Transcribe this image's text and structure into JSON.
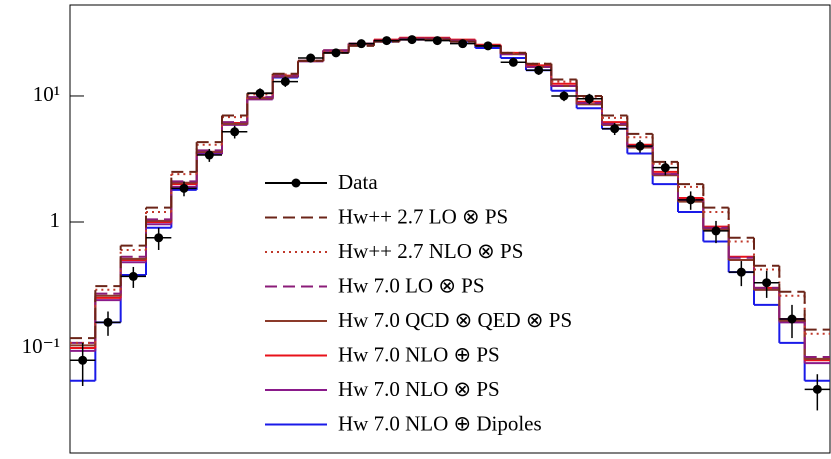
{
  "chart_data": {
    "type": "step",
    "categories": [
      null,
      null,
      null,
      null,
      null,
      null,
      null,
      null,
      null,
      null,
      null,
      null,
      null,
      null,
      null,
      null,
      null,
      null,
      null,
      null,
      null,
      null,
      null,
      null,
      null,
      null,
      null,
      null,
      null,
      null
    ],
    "log_y": true,
    "ylim": [
      0.0147,
      52.7
    ],
    "yticks": [
      {
        "value": 0.1,
        "label": "10⁻¹"
      },
      1,
      {
        "value": 10,
        "label": "10¹"
      }
    ],
    "legend": "center",
    "series": [
      {
        "name": "Data",
        "color": "#000000",
        "style": "points",
        "values": [
          0.08,
          0.16,
          0.37,
          0.75,
          1.85,
          3.4,
          5.2,
          10.5,
          13,
          20,
          22,
          26,
          27.5,
          28,
          27.5,
          26,
          25,
          18.5,
          16,
          10,
          9.5,
          5.5,
          4,
          2.7,
          1.5,
          0.85,
          0.4,
          0.33,
          0.17,
          0.047
        ],
        "errors": [
          0.03,
          0.035,
          0.07,
          0.15,
          0.25,
          0.4,
          0.6,
          1.0,
          1.2,
          1.6,
          1.6,
          1.8,
          1.8,
          1.8,
          1.8,
          1.7,
          1.7,
          1.4,
          1.3,
          0.9,
          0.9,
          0.6,
          0.45,
          0.35,
          0.25,
          0.17,
          0.09,
          0.08,
          0.05,
          0.015
        ]
      },
      {
        "name": "Hw++ 2.7 LO ⊗ PS",
        "color": "#6b2418",
        "style": "dashed",
        "values": [
          0.12,
          0.31,
          0.65,
          1.3,
          2.5,
          4.3,
          7,
          10.5,
          15,
          19,
          22,
          25,
          27,
          28,
          28,
          27,
          25,
          22,
          18,
          13.5,
          10,
          7,
          5,
          3,
          2,
          1.3,
          0.75,
          0.45,
          0.28,
          0.14
        ]
      },
      {
        "name": "Hw++ 2.7 NLO ⊗ PS",
        "color": "#c0392b",
        "style": "dotted",
        "values": [
          0.11,
          0.29,
          0.6,
          1.2,
          2.4,
          4.1,
          6.8,
          10.3,
          14.8,
          19,
          22.5,
          25.5,
          27,
          28,
          28.2,
          27,
          25,
          22,
          18,
          13,
          9.6,
          6.7,
          4.7,
          2.9,
          1.9,
          1.2,
          0.7,
          0.42,
          0.26,
          0.13
        ]
      },
      {
        "name": "Hw 7.0 LO ⊗ PS",
        "color": "#8b1c78",
        "style": "dashed",
        "values": [
          0.11,
          0.27,
          0.53,
          1.05,
          2.1,
          3.7,
          6.2,
          9.8,
          14.5,
          19,
          23,
          26,
          27.5,
          28.5,
          28.5,
          27.5,
          25,
          21.5,
          17,
          12,
          8.8,
          6,
          4,
          2.4,
          1.5,
          0.9,
          0.52,
          0.3,
          0.17,
          0.085
        ]
      },
      {
        "name": "Hw 7.0 QCD ⊗ QED ⊗ PS",
        "color": "#8b3a2a",
        "style": "solid",
        "values": [
          0.105,
          0.26,
          0.51,
          1.02,
          2.05,
          3.6,
          6.0,
          9.6,
          14.3,
          19,
          23,
          26,
          27.5,
          28.5,
          28.5,
          27.5,
          25,
          21.5,
          17,
          12,
          8.6,
          5.9,
          3.9,
          2.35,
          1.45,
          0.87,
          0.5,
          0.29,
          0.165,
          0.082
        ]
      },
      {
        "name": "Hw 7.0 NLO ⊕ PS",
        "color": "#e8121a",
        "style": "solid",
        "values": [
          0.1,
          0.25,
          0.5,
          1.0,
          2.0,
          3.6,
          6.1,
          9.7,
          14.5,
          19,
          23,
          26,
          28,
          29,
          29,
          28,
          25.5,
          22,
          17.5,
          12.5,
          9,
          6.2,
          4.1,
          2.5,
          1.55,
          0.92,
          0.53,
          0.3,
          0.17,
          0.08
        ]
      },
      {
        "name": "Hw 7.0 NLO ⊗ PS",
        "color": "#8a1a8a",
        "style": "solid",
        "values": [
          0.095,
          0.24,
          0.48,
          0.96,
          1.9,
          3.45,
          5.9,
          9.4,
          14.2,
          18.8,
          22.8,
          25.8,
          27.8,
          28.8,
          28.8,
          27.8,
          25.2,
          21.5,
          17,
          12,
          8.6,
          5.9,
          3.9,
          2.4,
          1.48,
          0.88,
          0.5,
          0.29,
          0.16,
          0.076
        ]
      },
      {
        "name": "Hw 7.0 NLO ⊕ Dipoles",
        "color": "#1a1ae8",
        "style": "solid",
        "values": [
          0.055,
          0.16,
          0.38,
          0.9,
          1.8,
          3.5,
          6,
          9.5,
          14,
          19,
          23,
          26,
          27,
          28,
          28,
          27,
          24,
          20,
          16,
          11,
          8,
          5.5,
          3.5,
          2,
          1.2,
          0.7,
          0.4,
          0.22,
          0.11,
          0.055
        ]
      }
    ]
  }
}
